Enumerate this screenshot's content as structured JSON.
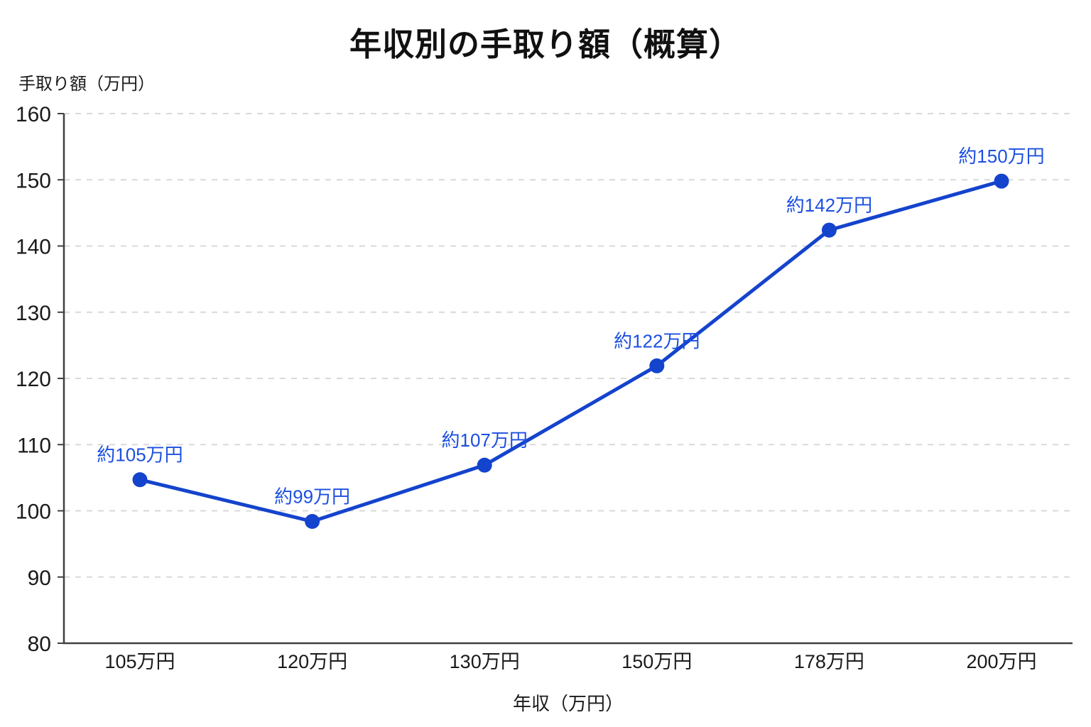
{
  "chart_data": {
    "type": "line",
    "title": "年収別の手取り額（概算）",
    "xlabel": "年収（万円）",
    "ylabel": "手取り額（万円）",
    "categories": [
      "105万円",
      "120万円",
      "130万円",
      "150万円",
      "178万円",
      "200万円"
    ],
    "values": [
      104.7,
      98.4,
      106.9,
      121.9,
      142.4,
      149.8
    ],
    "point_labels": [
      "約105万円",
      "約99万円",
      "約107万円",
      "約122万円",
      "約142万円",
      "約150万円"
    ],
    "yticks": [
      80,
      90,
      100,
      110,
      120,
      130,
      140,
      150,
      160
    ],
    "ylim": [
      80,
      160
    ],
    "grid": "horizontal-dashed",
    "legend": "none",
    "colors": {
      "line": "#1443cd",
      "point": "#1443cd",
      "point_label": "#1c4fe0",
      "grid": "#d9d9d9",
      "axis": "#404040",
      "tick_text": "#1a1a1a"
    }
  }
}
